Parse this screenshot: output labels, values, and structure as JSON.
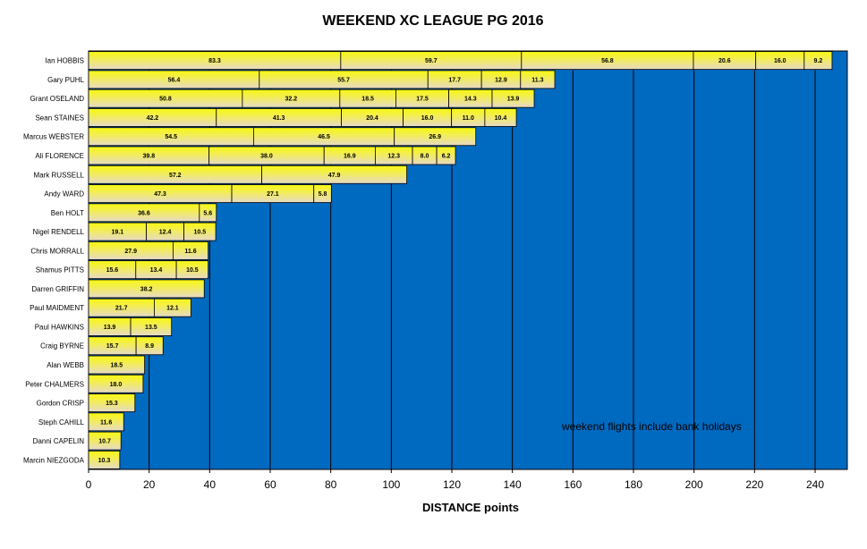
{
  "chart_data": {
    "type": "bar",
    "orientation": "horizontal",
    "stacked": true,
    "title": "WEEKEND XC LEAGUE PG 2016",
    "xlabel": "DISTANCE  points",
    "ylabel": "",
    "xlim": [
      0,
      250
    ],
    "xticks": [
      0,
      20,
      40,
      60,
      80,
      100,
      120,
      140,
      160,
      180,
      200,
      220,
      240
    ],
    "grid": "vertical lines at x ticks",
    "annotation": "weekend flights include bank holidays",
    "colors": {
      "plot_background": "#0069c0",
      "bar_fill_top": "#f7f711",
      "bar_fill_bottom": "#e8dcc8",
      "gridline": "#000000"
    },
    "categories": [
      "Ian HOBBIS",
      "Gary PUHL",
      "Grant OSELAND",
      "Sean STAINES",
      "Marcus WEBSTER",
      "Ali FLORENCE",
      "Mark RUSSELL",
      "Andy WARD",
      "Ben HOLT",
      "Nigel RENDELL",
      "Chris MORRALL",
      "Shamus PITTS",
      "Darren GRIFFIN",
      "Paul MAIDMENT",
      "Paul HAWKINS",
      "Craig BYRNE",
      "Alan WEBB",
      "Peter CHALMERS",
      "Gordon CRISP",
      "Steph CAHILL",
      "Danni CAPELIN",
      "Marcin NIEZGODA"
    ],
    "segments": [
      [
        83.3,
        59.7,
        56.8,
        20.6,
        16.0,
        9.2
      ],
      [
        56.4,
        55.7,
        17.7,
        12.9,
        11.3
      ],
      [
        50.8,
        32.2,
        18.5,
        17.5,
        14.3,
        13.9
      ],
      [
        42.2,
        41.3,
        20.4,
        16.0,
        11.0,
        10.4
      ],
      [
        54.5,
        46.5,
        26.9
      ],
      [
        39.8,
        38.0,
        16.9,
        12.3,
        8.0,
        6.2
      ],
      [
        57.2,
        47.9
      ],
      [
        47.3,
        27.1,
        5.8
      ],
      [
        36.6,
        5.6
      ],
      [
        19.1,
        12.4,
        10.5
      ],
      [
        27.9,
        11.6
      ],
      [
        15.6,
        13.4,
        10.5
      ],
      [
        38.2
      ],
      [
        21.7,
        12.1
      ],
      [
        13.9,
        13.5
      ],
      [
        15.7,
        8.9
      ],
      [
        18.5
      ],
      [
        18.0
      ],
      [
        15.3
      ],
      [
        11.6
      ],
      [
        10.7
      ],
      [
        10.3
      ]
    ]
  }
}
